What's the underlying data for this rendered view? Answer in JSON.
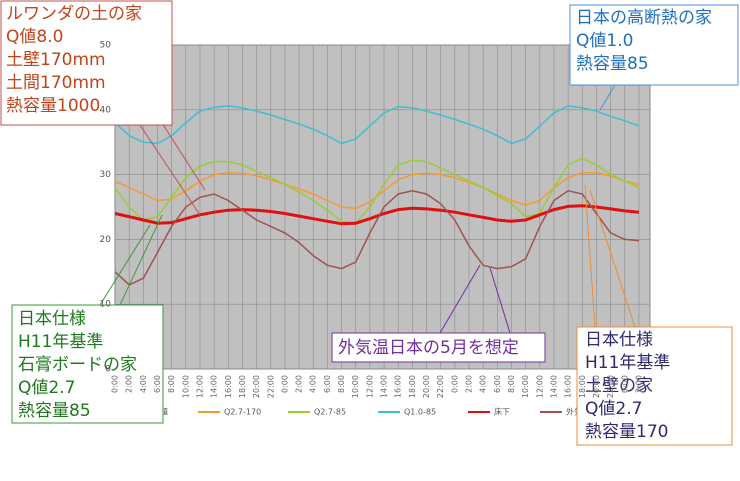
{
  "chart_data": {
    "type": "line",
    "categories": [
      "0:00",
      "2:00",
      "4:00",
      "6:00",
      "8:00",
      "10:00",
      "12:00",
      "14:00",
      "16:00",
      "18:00",
      "20:00",
      "22:00",
      "0:00",
      "2:00",
      "4:00",
      "6:00",
      "8:00",
      "10:00",
      "12:00",
      "14:00",
      "16:00",
      "18:00",
      "20:00",
      "22:00",
      "0:00",
      "2:00",
      "4:00",
      "6:00",
      "8:00",
      "10:00",
      "12:00",
      "14:00",
      "16:00",
      "18:00",
      "20:00",
      "22:00",
      "0:00",
      "2:00"
    ],
    "series": [
      {
        "name": "計画値",
        "color": "#f4a6a6",
        "values": [
          null,
          null,
          null,
          null,
          null,
          null,
          null,
          null,
          null,
          null,
          null,
          null,
          null,
          null,
          null,
          null,
          null,
          null,
          null,
          null,
          null,
          null,
          null,
          null,
          null,
          null,
          null,
          null,
          null,
          null,
          null,
          null,
          null,
          null,
          null,
          null,
          null,
          null
        ]
      },
      {
        "name": "Q2.7-170",
        "color": "#f79a2e",
        "values": [
          29,
          28,
          27,
          26,
          26.2,
          27.5,
          29,
          30,
          30.3,
          30.2,
          29.8,
          29.2,
          28.5,
          27.8,
          27,
          26,
          25,
          24.8,
          25.8,
          27.5,
          29.2,
          30,
          30.2,
          30,
          29.5,
          28.8,
          28,
          27,
          26,
          25.3,
          26,
          28,
          29.5,
          30.3,
          30.3,
          29.8,
          29,
          28.5
        ]
      },
      {
        "name": "Q2.7-85",
        "color": "#9acd32",
        "values": [
          28,
          25,
          23,
          23.5,
          26.5,
          29.5,
          31.3,
          32,
          32,
          31.5,
          30.5,
          29.5,
          28.5,
          27.3,
          26,
          24.5,
          22.8,
          22.5,
          25,
          28.5,
          31.5,
          32.2,
          32,
          31,
          30,
          29,
          28,
          26.8,
          25.5,
          23.5,
          24,
          28,
          31.5,
          32.5,
          31.5,
          30,
          29,
          28
        ]
      },
      {
        "name": "Q1.0-85",
        "color": "#3cbfd0",
        "values": [
          38,
          36,
          35,
          34.8,
          36,
          38,
          39.8,
          40.4,
          40.6,
          40.3,
          39.8,
          39.2,
          38.5,
          37.8,
          37,
          36,
          34.8,
          35.5,
          37.5,
          39.5,
          40.5,
          40.3,
          39.8,
          39.2,
          38.5,
          37.8,
          37,
          36,
          34.8,
          35.5,
          37.5,
          39.5,
          40.6,
          40.3,
          39.8,
          39,
          38.3,
          37.5
        ]
      },
      {
        "name": "床下",
        "color": "#e01010",
        "values": [
          24,
          23.5,
          23,
          22.5,
          22.6,
          23.2,
          23.8,
          24.2,
          24.5,
          24.6,
          24.5,
          24.3,
          24,
          23.6,
          23.2,
          22.8,
          22.4,
          22.5,
          23.2,
          24,
          24.6,
          24.8,
          24.7,
          24.5,
          24.2,
          23.8,
          23.4,
          23,
          22.8,
          23,
          23.8,
          24.6,
          25.1,
          25.2,
          25,
          24.7,
          24.4,
          24.2
        ]
      },
      {
        "name": "外気温",
        "color": "#a0524d",
        "values": [
          15,
          13,
          14,
          18,
          22,
          25,
          26.5,
          27,
          26,
          24.5,
          23,
          22,
          21,
          19.5,
          17.5,
          16,
          15.5,
          16.5,
          21,
          25,
          27,
          27.5,
          27,
          25.5,
          23,
          19,
          16,
          15.5,
          15.8,
          17,
          22,
          26,
          27.5,
          27,
          24,
          21,
          20,
          19.8
        ]
      }
    ],
    "ylim": [
      0,
      50
    ],
    "yticks": [
      0,
      10,
      20,
      30,
      40,
      50
    ],
    "grid": true,
    "annotations": [
      {
        "lines": [
          "ルワンダの土の家",
          "Q値8.0",
          "土壁170mm",
          "土間170mm",
          "熱容量1000"
        ]
      },
      {
        "lines": [
          "日本の高断熱の家",
          "Q値1.0",
          "熱容量85"
        ]
      },
      {
        "lines": [
          "日本仕様",
          "H11年基準",
          "石膏ボードの家",
          "Q値2.7",
          "熱容量85"
        ]
      },
      {
        "lines": [
          "外気温日本の5月を想定"
        ]
      },
      {
        "lines": [
          "日本仕様",
          "H11年基準",
          "土壁の家",
          "Q値2.7",
          "熱容量170"
        ]
      }
    ]
  }
}
